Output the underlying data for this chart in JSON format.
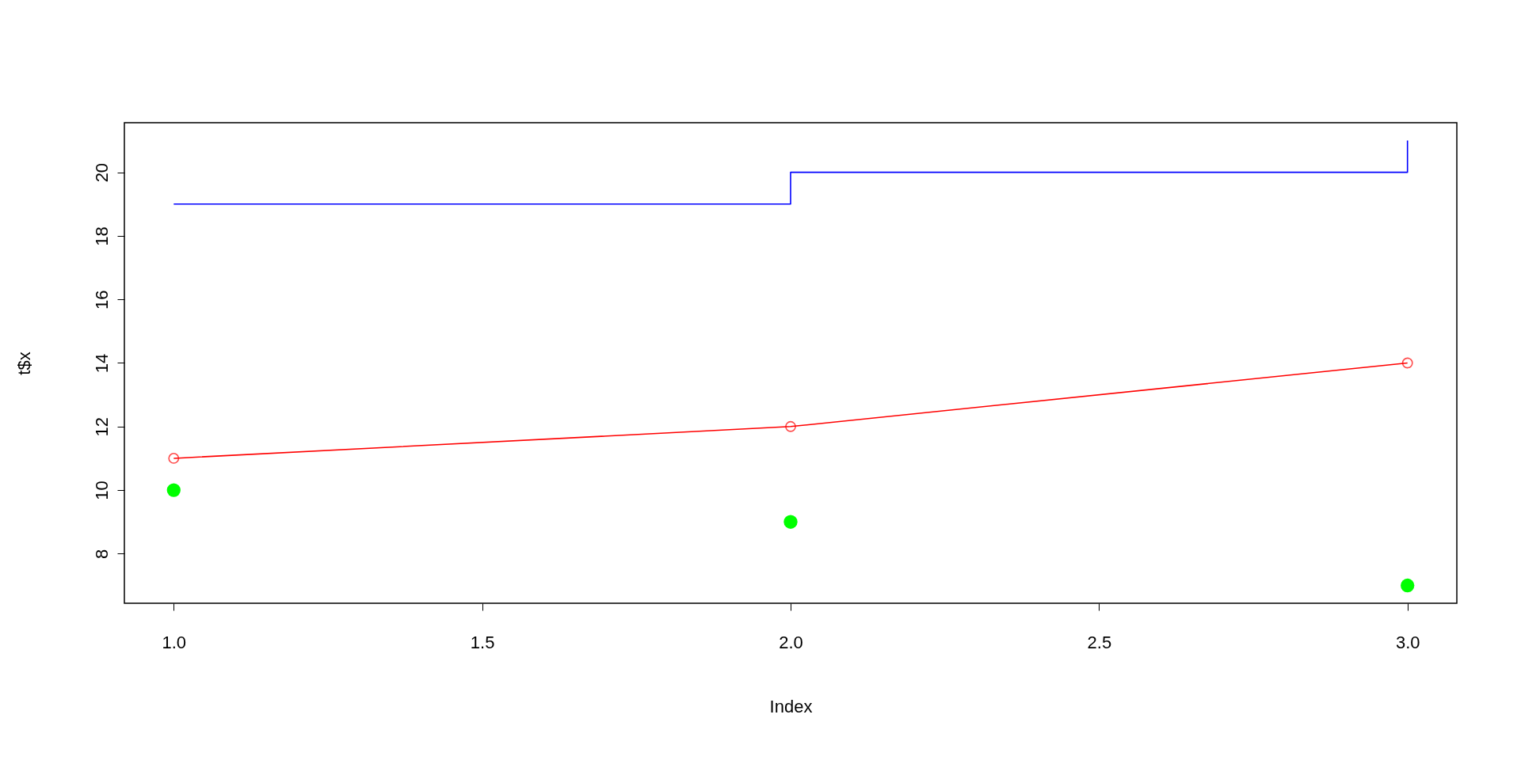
{
  "chart_data": {
    "type": "line",
    "xlabel": "Index",
    "ylabel": "t$x",
    "x": [
      1,
      2,
      3
    ],
    "series": [
      {
        "type": "step",
        "color": "#0000ff",
        "values": [
          19,
          20,
          21
        ],
        "marker": "none"
      },
      {
        "color": "#ff0000",
        "values": [
          11,
          12,
          14
        ],
        "marker": "circle"
      },
      {
        "type": "scatter",
        "color": "#00ff00",
        "values": [
          10,
          9,
          7
        ],
        "marker": "circle"
      }
    ],
    "xlim": [
      0.92,
      3.08
    ],
    "ylim": [
      6.44,
      21.56
    ],
    "xticks": [
      {
        "value": 1,
        "label": "1.0"
      },
      {
        "value": 1.5,
        "label": "1.5"
      },
      {
        "value": 2,
        "label": "2.0"
      },
      {
        "value": 2.5,
        "label": "2.5"
      },
      {
        "value": 3,
        "label": "3.0"
      }
    ],
    "yticks": [
      8,
      10,
      12,
      14,
      16,
      18,
      20
    ],
    "grid": false,
    "legend": false
  }
}
